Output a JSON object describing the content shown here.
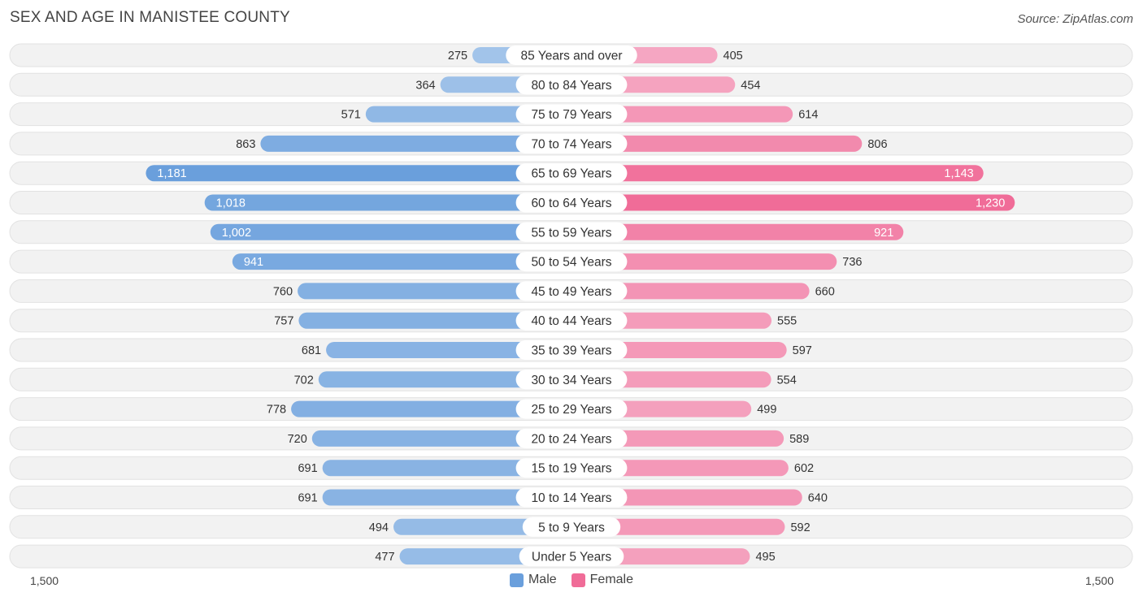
{
  "title": "SEX AND AGE IN MANISTEE COUNTY",
  "source": "Source: ZipAtlas.com",
  "axis": {
    "left_label": "1,500",
    "right_label": "1,500"
  },
  "legend": {
    "male": "Male",
    "female": "Female"
  },
  "colors": {
    "male_light": "#a4c5ea",
    "male_dark": "#6a9fdc",
    "female_light": "#f5a8c3",
    "female_dark": "#f06c98",
    "track": "#f0f0f0"
  },
  "chart_data": {
    "type": "bar",
    "orientation": "horizontal-diverging",
    "xlim": [
      -1500,
      1500
    ],
    "categories": [
      "85 Years and over",
      "80 to 84 Years",
      "75 to 79 Years",
      "70 to 74 Years",
      "65 to 69 Years",
      "60 to 64 Years",
      "55 to 59 Years",
      "50 to 54 Years",
      "45 to 49 Years",
      "40 to 44 Years",
      "35 to 39 Years",
      "30 to 34 Years",
      "25 to 29 Years",
      "20 to 24 Years",
      "15 to 19 Years",
      "10 to 14 Years",
      "5 to 9 Years",
      "Under 5 Years"
    ],
    "series": [
      {
        "name": "Male",
        "values": [
          275,
          364,
          571,
          863,
          1181,
          1018,
          1002,
          941,
          760,
          757,
          681,
          702,
          778,
          720,
          691,
          691,
          494,
          477
        ],
        "labels": [
          "275",
          "364",
          "571",
          "863",
          "1,181",
          "1,018",
          "1,002",
          "941",
          "760",
          "757",
          "681",
          "702",
          "778",
          "720",
          "691",
          "691",
          "494",
          "477"
        ]
      },
      {
        "name": "Female",
        "values": [
          405,
          454,
          614,
          806,
          1143,
          1230,
          921,
          736,
          660,
          555,
          597,
          554,
          499,
          589,
          602,
          640,
          592,
          495
        ],
        "labels": [
          "405",
          "454",
          "614",
          "806",
          "1,143",
          "1,230",
          "921",
          "736",
          "660",
          "555",
          "597",
          "554",
          "499",
          "589",
          "602",
          "640",
          "592",
          "495"
        ]
      }
    ]
  }
}
